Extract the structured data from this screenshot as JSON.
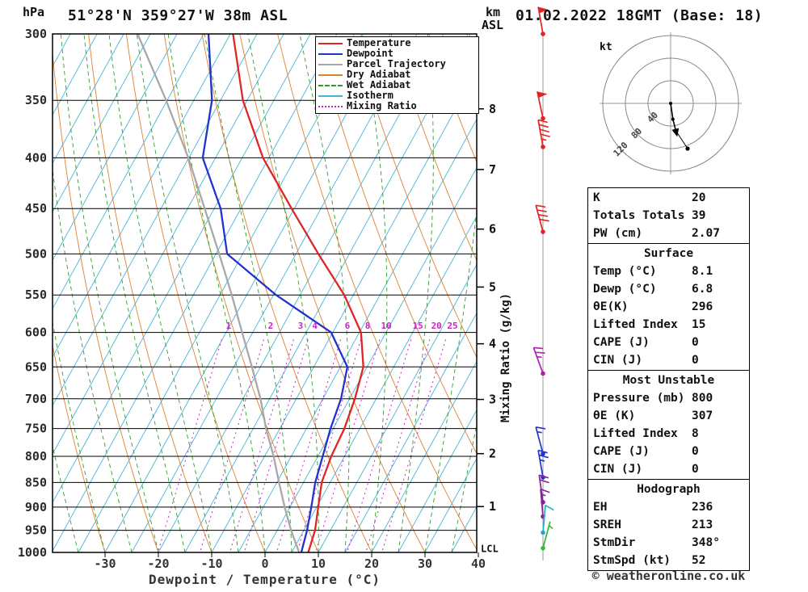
{
  "header": {
    "pressure_unit": "hPa",
    "station": "51°28'N 359°27'W 38m ASL",
    "altitude_line1": "km",
    "altitude_line2": "ASL",
    "datetime": "01.02.2022 18GMT (Base: 18)"
  },
  "axes": {
    "pressure_ticks": [
      300,
      350,
      400,
      450,
      500,
      550,
      600,
      650,
      700,
      750,
      800,
      850,
      900,
      950,
      1000
    ],
    "temp_ticks": [
      -30,
      -20,
      -10,
      0,
      10,
      20,
      30,
      40
    ],
    "km_ticks": [
      8,
      7,
      6,
      5,
      4,
      3,
      2,
      1
    ],
    "lcl_label": "LCL",
    "lcl_pressure": 990,
    "xlabel": "Dewpoint / Temperature (°C)",
    "mixing_ratio_label": "Mixing Ratio (g/kg)"
  },
  "colors": {
    "temperature": "#e02525",
    "dewpoint": "#2233cc",
    "parcel": "#a8a8a8",
    "dry_adiabat": "#e0812f",
    "wet_adiabat": "#2f9e2f",
    "isotherm": "#45b6d8",
    "mixing_ratio": "#cc22cc"
  },
  "legend": [
    {
      "label": "Temperature",
      "key": "temperature",
      "style": "solid"
    },
    {
      "label": "Dewpoint",
      "key": "dewpoint",
      "style": "solid"
    },
    {
      "label": "Parcel Trajectory",
      "key": "parcel",
      "style": "solid"
    },
    {
      "label": "Dry Adiabat",
      "key": "dry_adiabat",
      "style": "solid"
    },
    {
      "label": "Wet Adiabat",
      "key": "wet_adiabat",
      "style": "dashed"
    },
    {
      "label": "Isotherm",
      "key": "isotherm",
      "style": "solid"
    },
    {
      "label": "Mixing Ratio",
      "key": "mixing_ratio",
      "style": "dotted"
    }
  ],
  "chart_data": {
    "type": "skewt-logp-sounding",
    "pressure_axis_hpa": [
      300,
      1000
    ],
    "temp_axis_c": [
      -40,
      40
    ],
    "pressure_hpa": [
      1000,
      950,
      900,
      850,
      800,
      750,
      700,
      650,
      600,
      550,
      500,
      450,
      400,
      350,
      300
    ],
    "temperature_c": [
      8.1,
      7.1,
      5.3,
      3.4,
      2.5,
      2.1,
      1.0,
      -0.7,
      -4.7,
      -11.7,
      -20.8,
      -30.5,
      -41.1,
      -50.8,
      -59.5
    ],
    "dewpoint_c": [
      6.8,
      5.6,
      4.0,
      2.2,
      0.9,
      -0.5,
      -1.6,
      -3.7,
      -10.3,
      -24.5,
      -37.9,
      -43.8,
      -52.4,
      -56.6,
      -64.1
    ],
    "parcel_c": [
      6.4,
      2.6,
      -1.0,
      -4.6,
      -8.3,
      -12.6,
      -16.7,
      -21.6,
      -27.0,
      -32.8,
      -39.4,
      -46.8,
      -55.1,
      -65.2,
      -77.4
    ],
    "mixing_ratio_lines": [
      {
        "value": 1,
        "t_at_600": -30.1
      },
      {
        "value": 2,
        "t_at_600": -22.2
      },
      {
        "value": 3,
        "t_at_600": -16.6
      },
      {
        "value": 4,
        "t_at_600": -13.9
      },
      {
        "value": 6,
        "t_at_600": -7.8
      },
      {
        "value": 8,
        "t_at_600": -4.0
      },
      {
        "value": 10,
        "t_at_600": -0.5
      },
      {
        "value": 15,
        "t_at_600": 5.4
      },
      {
        "value": 20,
        "t_at_600": 8.9
      },
      {
        "value": 25,
        "t_at_600": 11.9
      }
    ],
    "background": {
      "isotherms_c": {
        "min": -90,
        "max": 40,
        "step": 5
      },
      "dry_adiabats_c": {
        "min": -40,
        "max": 100,
        "step": 10
      },
      "wet_adiabats_c": {
        "min": -60,
        "max": 40,
        "step": 5
      }
    },
    "wind_barbs": [
      {
        "pressure": 300,
        "speed_kt": 50,
        "dir_deg": 350,
        "color": "#e02525"
      },
      {
        "pressure": 365,
        "speed_kt": 50,
        "dir_deg": 348,
        "color": "#e02525"
      },
      {
        "pressure": 390,
        "speed_kt": 45,
        "dir_deg": 350,
        "color": "#e02525"
      },
      {
        "pressure": 475,
        "speed_kt": 40,
        "dir_deg": 345,
        "color": "#e02525"
      },
      {
        "pressure": 660,
        "speed_kt": 25,
        "dir_deg": 340,
        "color": "#aa22aa"
      },
      {
        "pressure": 795,
        "speed_kt": 15,
        "dir_deg": 345,
        "color": "#2233cc"
      },
      {
        "pressure": 840,
        "speed_kt": 25,
        "dir_deg": 350,
        "color": "#2233cc"
      },
      {
        "pressure": 890,
        "speed_kt": 20,
        "dir_deg": 352,
        "color": "#882299"
      },
      {
        "pressure": 920,
        "speed_kt": 15,
        "dir_deg": 355,
        "color": "#882299"
      },
      {
        "pressure": 955,
        "speed_kt": 10,
        "dir_deg": 5,
        "color": "#22aacc"
      },
      {
        "pressure": 990,
        "speed_kt": 5,
        "dir_deg": 15,
        "color": "#33bb33"
      }
    ],
    "hodograph": {
      "unit": "kt",
      "rings": [
        40,
        80,
        120
      ],
      "trace_kt": [
        [
          0,
          0
        ],
        [
          4,
          -28
        ],
        [
          9,
          -48
        ]
      ],
      "end_dot_kt": [
        30,
        -80
      ]
    }
  },
  "panels": {
    "indices": {
      "rows": [
        [
          "K",
          "20"
        ],
        [
          "Totals Totals",
          "39"
        ],
        [
          "PW (cm)",
          "2.07"
        ]
      ]
    },
    "surface": {
      "title": "Surface",
      "rows": [
        [
          "Temp (°C)",
          "8.1"
        ],
        [
          "Dewp (°C)",
          "6.8"
        ],
        [
          "θE(K)",
          "296"
        ],
        [
          "Lifted Index",
          "15"
        ],
        [
          "CAPE (J)",
          "0"
        ],
        [
          "CIN (J)",
          "0"
        ]
      ]
    },
    "most_unstable": {
      "title": "Most Unstable",
      "rows": [
        [
          "Pressure (mb)",
          "800"
        ],
        [
          "θE (K)",
          "307"
        ],
        [
          "Lifted Index",
          "8"
        ],
        [
          "CAPE (J)",
          "0"
        ],
        [
          "CIN (J)",
          "0"
        ]
      ]
    },
    "hodograph_panel": {
      "title": "Hodograph",
      "rows": [
        [
          "EH",
          "236"
        ],
        [
          "SREH",
          "213"
        ],
        [
          "StmDir",
          "348°"
        ],
        [
          "StmSpd (kt)",
          "52"
        ]
      ]
    }
  },
  "footer": {
    "copyright": "© weatheronline.co.uk"
  }
}
